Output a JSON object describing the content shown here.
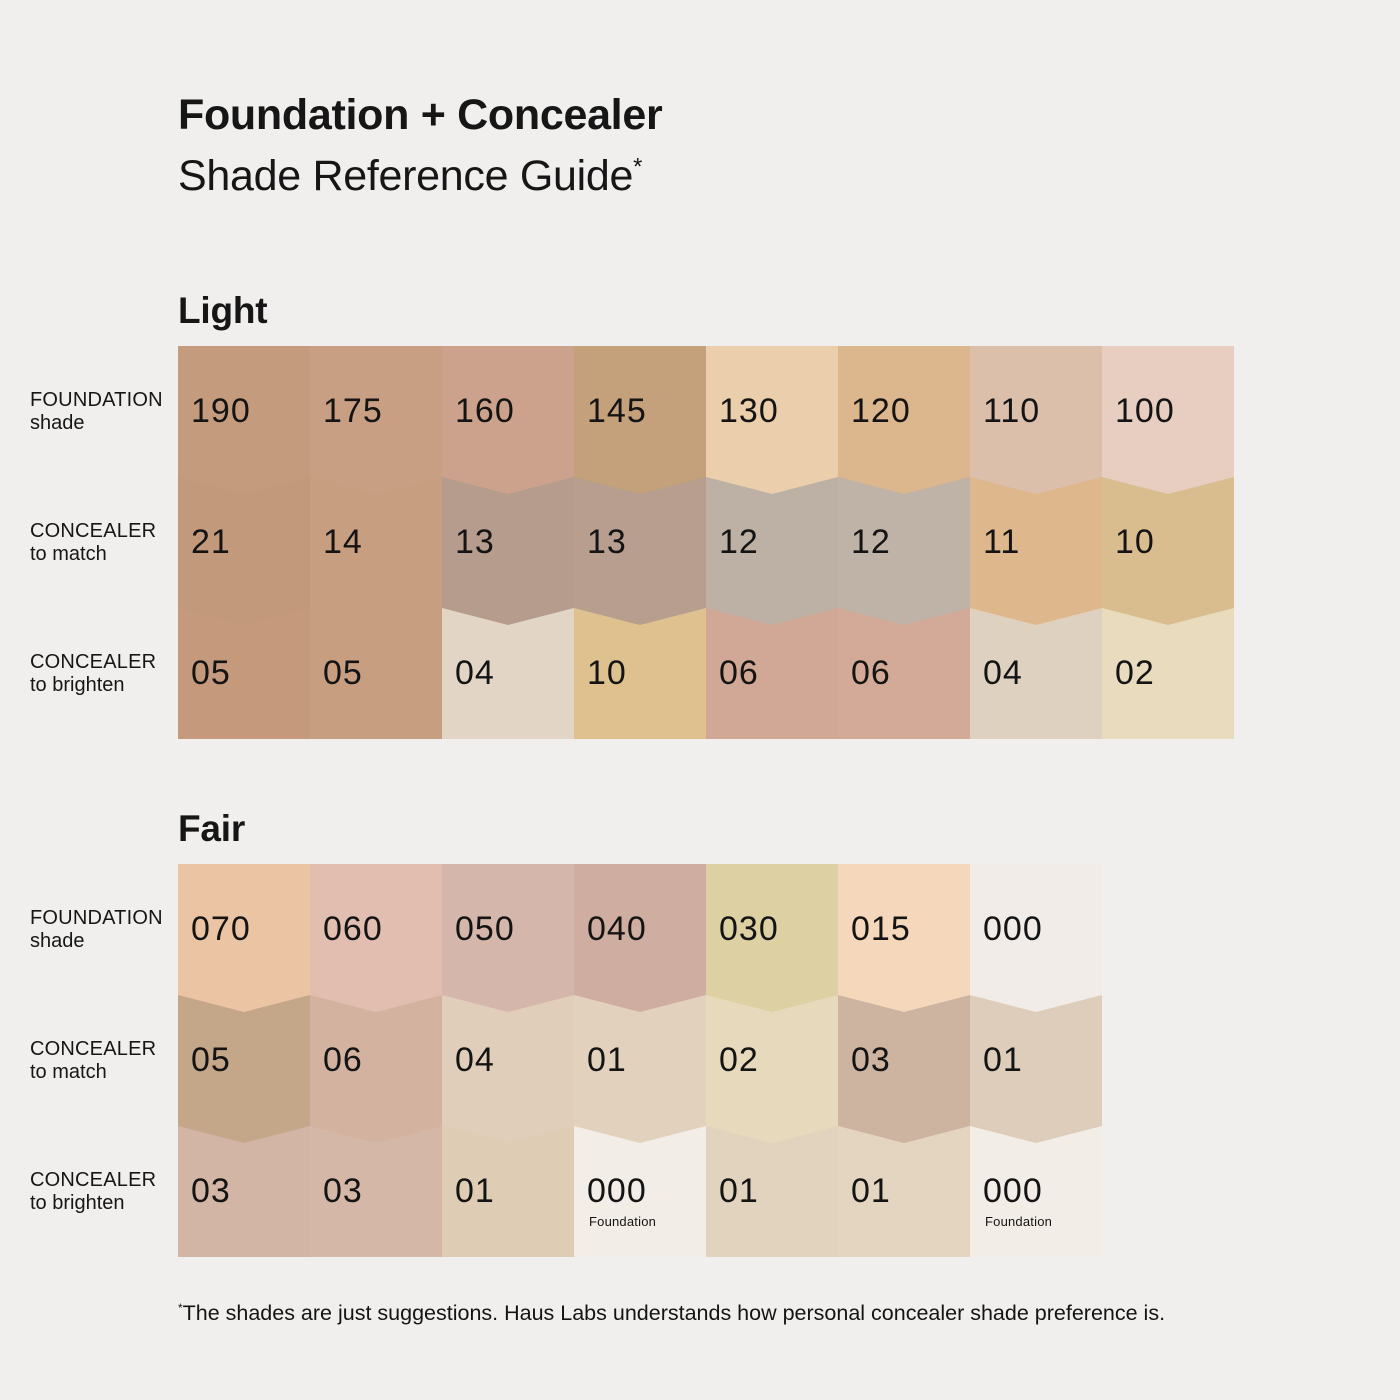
{
  "title": {
    "line1": "Foundation + Concealer",
    "line2": "Shade Reference Guide",
    "marker": "*"
  },
  "row_labels": [
    {
      "line1": "FOUNDATION",
      "line2": "shade"
    },
    {
      "line1": "CONCEALER",
      "line2": "to match"
    },
    {
      "line1": "CONCEALER",
      "line2": "to brighten"
    }
  ],
  "sections": [
    {
      "name": "Light",
      "rows": [
        {
          "cells": [
            {
              "label": "190",
              "color": "#c59b7d"
            },
            {
              "label": "175",
              "color": "#c99f83"
            },
            {
              "label": "160",
              "color": "#cda28c"
            },
            {
              "label": "145",
              "color": "#c4a17b"
            },
            {
              "label": "130",
              "color": "#ebceab"
            },
            {
              "label": "120",
              "color": "#dcb68d"
            },
            {
              "label": "110",
              "color": "#dcbfab"
            },
            {
              "label": "100",
              "color": "#e7cec1"
            }
          ]
        },
        {
          "cells": [
            {
              "label": "21",
              "color": "#c3997b"
            },
            {
              "label": "14",
              "color": "#c89e81"
            },
            {
              "label": "13",
              "color": "#b59c8d"
            },
            {
              "label": "13",
              "color": "#b79e8f"
            },
            {
              "label": "12",
              "color": "#bdb0a4"
            },
            {
              "label": "12",
              "color": "#bfb2a6"
            },
            {
              "label": "11",
              "color": "#dfb78c"
            },
            {
              "label": "10",
              "color": "#dabd8f"
            }
          ]
        },
        {
          "cells": [
            {
              "label": "05",
              "color": "#c59a7c"
            },
            {
              "label": "05",
              "color": "#c89e81"
            },
            {
              "label": "04",
              "color": "#e3d5c6"
            },
            {
              "label": "10",
              "color": "#dec18e"
            },
            {
              "label": "06",
              "color": "#d1a895"
            },
            {
              "label": "06",
              "color": "#d3aa97"
            },
            {
              "label": "04",
              "color": "#dfd1c0"
            },
            {
              "label": "02",
              "color": "#e8dbbe"
            }
          ]
        }
      ]
    },
    {
      "name": "Fair",
      "rows": [
        {
          "cells": [
            {
              "label": "070",
              "color": "#ebc4a3"
            },
            {
              "label": "060",
              "color": "#e2beb0"
            },
            {
              "label": "050",
              "color": "#d5b6aa"
            },
            {
              "label": "040",
              "color": "#cfaea1"
            },
            {
              "label": "030",
              "color": "#ddd0a2"
            },
            {
              "label": "015",
              "color": "#f5d7bc"
            },
            {
              "label": "000",
              "color": "#f1ece8"
            }
          ]
        },
        {
          "cells": [
            {
              "label": "05",
              "color": "#c4a689"
            },
            {
              "label": "06",
              "color": "#d3b3a0"
            },
            {
              "label": "04",
              "color": "#e0ceba"
            },
            {
              "label": "01",
              "color": "#e1d1bd"
            },
            {
              "label": "02",
              "color": "#e6d9bc"
            },
            {
              "label": "03",
              "color": "#ccb4a1"
            },
            {
              "label": "01",
              "color": "#decdbb"
            }
          ]
        },
        {
          "cells": [
            {
              "label": "03",
              "color": "#d3b5a6"
            },
            {
              "label": "03",
              "color": "#d5b7a8"
            },
            {
              "label": "01",
              "color": "#dfccb4"
            },
            {
              "label": "000",
              "color": "#f3ede7",
              "sub": "Foundation"
            },
            {
              "label": "01",
              "color": "#e2d3be"
            },
            {
              "label": "01",
              "color": "#e4d5c0"
            },
            {
              "label": "000",
              "color": "#f3ede7",
              "sub": "Foundation"
            }
          ]
        }
      ]
    }
  ],
  "footnote": {
    "marker": "*",
    "text": "The shades are just suggestions. Haus Labs understands how personal concealer shade preference is."
  },
  "colors": {
    "background": "#f0efed",
    "text": "#161616"
  },
  "chart_data": {
    "type": "table",
    "title": "Foundation + Concealer Shade Reference Guide",
    "sections": [
      {
        "name": "Light",
        "columns": [
          "190",
          "175",
          "160",
          "145",
          "130",
          "120",
          "110",
          "100"
        ],
        "rows": [
          {
            "label": "FOUNDATION shade",
            "values": [
              "190",
              "175",
              "160",
              "145",
              "130",
              "120",
              "110",
              "100"
            ]
          },
          {
            "label": "CONCEALER to match",
            "values": [
              "21",
              "14",
              "13",
              "13",
              "12",
              "12",
              "11",
              "10"
            ]
          },
          {
            "label": "CONCEALER to brighten",
            "values": [
              "05",
              "05",
              "04",
              "10",
              "06",
              "06",
              "04",
              "02"
            ]
          }
        ]
      },
      {
        "name": "Fair",
        "columns": [
          "070",
          "060",
          "050",
          "040",
          "030",
          "015",
          "000"
        ],
        "rows": [
          {
            "label": "FOUNDATION shade",
            "values": [
              "070",
              "060",
              "050",
              "040",
              "030",
              "015",
              "000"
            ]
          },
          {
            "label": "CONCEALER to match",
            "values": [
              "05",
              "06",
              "04",
              "01",
              "02",
              "03",
              "01"
            ]
          },
          {
            "label": "CONCEALER to brighten",
            "values": [
              "03",
              "03",
              "01",
              "000 Foundation",
              "01",
              "01",
              "000 Foundation"
            ]
          }
        ]
      }
    ]
  }
}
